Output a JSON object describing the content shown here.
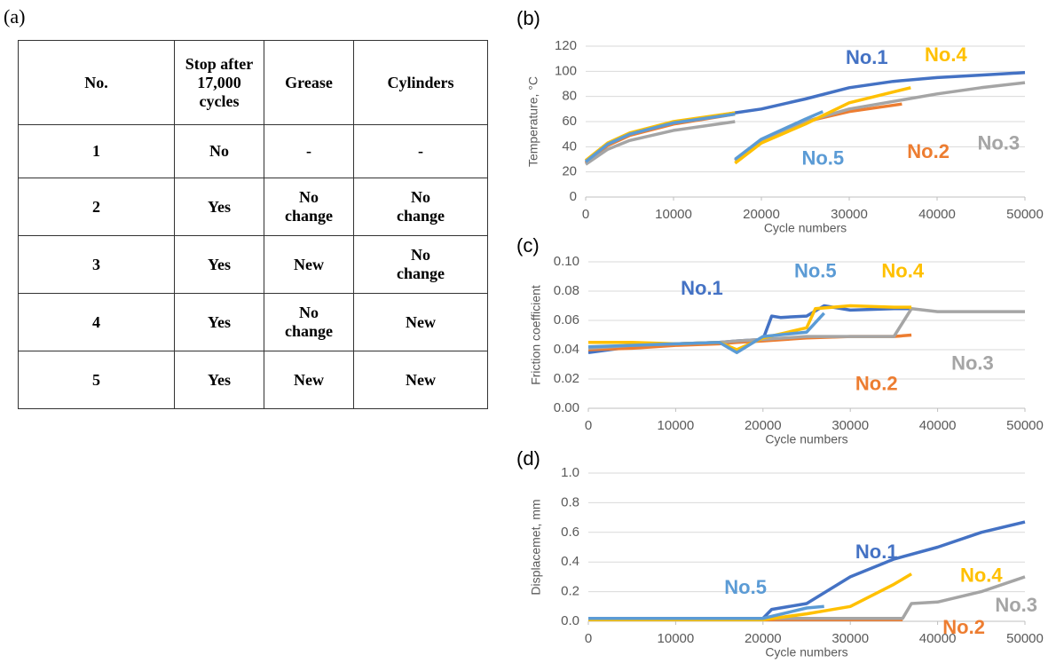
{
  "table": {
    "panel_label": "(a)",
    "header": [
      "No.",
      "Stop after 17,000 cycles",
      "Grease",
      "Cylinders"
    ],
    "rows": [
      [
        "1",
        "No",
        "-",
        "-"
      ],
      [
        "2",
        "Yes",
        "No change",
        "No change"
      ],
      [
        "3",
        "Yes",
        "New",
        "No change"
      ],
      [
        "4",
        "Yes",
        "No change",
        "New"
      ],
      [
        "5",
        "Yes",
        "New",
        "New"
      ]
    ]
  },
  "chart_data": [
    {
      "type": "line",
      "panel_label": "(b)",
      "xlabel": "Cycle numbers",
      "ylabel": "Temperature, °C",
      "xlim": [
        0,
        50000
      ],
      "xticks": [
        0,
        10000,
        20000,
        30000,
        40000,
        50000
      ],
      "ylim": [
        0,
        120
      ],
      "yticks": [
        0,
        20,
        40,
        60,
        80,
        100,
        120
      ],
      "grid": true,
      "series": [
        {
          "name": "No.1",
          "color": "#4472c4",
          "x": [
            0,
            2500,
            5000,
            10000,
            17000,
            20000,
            25000,
            30000,
            35000,
            40000,
            45000,
            50000
          ],
          "values": [
            28,
            42,
            50,
            59,
            67,
            70,
            78,
            87,
            92,
            95,
            97,
            99
          ]
        },
        {
          "name": "No.2",
          "color": "#ed7d31",
          "x": [
            0,
            2500,
            5000,
            10000,
            17000,
            17000,
            17000,
            20000,
            25000,
            30000,
            36000
          ],
          "values": [
            27,
            41,
            49,
            58,
            66,
            null,
            29,
            45,
            60,
            68,
            74
          ]
        },
        {
          "name": "No.3",
          "color": "#a5a5a5",
          "x": [
            0,
            2500,
            5000,
            10000,
            17000,
            17000,
            17000,
            20000,
            25000,
            30000,
            35000,
            40000,
            45000,
            50000
          ],
          "values": [
            26,
            38,
            45,
            53,
            60,
            null,
            29,
            45,
            60,
            70,
            76,
            82,
            87,
            91
          ]
        },
        {
          "name": "No.4",
          "color": "#ffc000",
          "x": [
            0,
            2500,
            5000,
            10000,
            17000,
            17000,
            17000,
            20000,
            25000,
            30000,
            37000
          ],
          "values": [
            29,
            43,
            51,
            60,
            67,
            null,
            27,
            43,
            58,
            75,
            87
          ]
        },
        {
          "name": "No.5",
          "color": "#5b9bd5",
          "x": [
            0,
            2500,
            5000,
            10000,
            17000,
            17000,
            17000,
            20000,
            25000,
            27000
          ],
          "values": [
            28,
            42,
            50,
            59,
            66,
            null,
            30,
            46,
            62,
            68
          ]
        }
      ]
    },
    {
      "type": "line",
      "panel_label": "(c)",
      "xlabel": "Cycle numbers",
      "ylabel": "Friction coefficient",
      "xlim": [
        0,
        50000
      ],
      "xticks": [
        0,
        10000,
        20000,
        30000,
        40000,
        50000
      ],
      "ylim": [
        0,
        0.1
      ],
      "yticks": [
        {
          "value": 0,
          "label": "0.00"
        },
        {
          "value": 0.02,
          "label": "0.02"
        },
        {
          "value": 0.04,
          "label": "0.04"
        },
        {
          "value": 0.06,
          "label": "0.06"
        },
        {
          "value": 0.08,
          "label": "0.08"
        },
        {
          "value": 0.1,
          "label": "0.10"
        }
      ],
      "grid": true,
      "series": [
        {
          "name": "No.1",
          "color": "#4472c4",
          "x": [
            0,
            5000,
            10000,
            15000,
            17000,
            20000,
            21000,
            22000,
            25000,
            27000,
            30000,
            35000,
            37000
          ],
          "values": [
            0.038,
            0.042,
            0.044,
            0.045,
            0.046,
            0.047,
            0.063,
            0.062,
            0.063,
            0.07,
            0.067,
            0.068,
            0.068
          ]
        },
        {
          "name": "No.2",
          "color": "#ed7d31",
          "x": [
            0,
            5000,
            10000,
            15000,
            17000,
            20000,
            25000,
            30000,
            35000,
            37000
          ],
          "values": [
            0.04,
            0.041,
            0.043,
            0.044,
            0.045,
            0.046,
            0.048,
            0.049,
            0.049,
            0.05
          ]
        },
        {
          "name": "No.3",
          "color": "#a5a5a5",
          "x": [
            0,
            5000,
            10000,
            15000,
            17000,
            20000,
            25000,
            30000,
            35000,
            37000,
            40000,
            45000,
            50000
          ],
          "values": [
            0.041,
            0.043,
            0.044,
            0.045,
            0.046,
            0.047,
            0.049,
            0.049,
            0.049,
            0.068,
            0.066,
            0.066,
            0.066
          ]
        },
        {
          "name": "No.4",
          "color": "#ffc000",
          "x": [
            0,
            5000,
            10000,
            15000,
            17000,
            20000,
            25000,
            26000,
            30000,
            35000,
            37000
          ],
          "values": [
            0.045,
            0.045,
            0.044,
            0.045,
            0.04,
            0.048,
            0.055,
            0.068,
            0.07,
            0.069,
            0.069
          ]
        },
        {
          "name": "No.5",
          "color": "#5b9bd5",
          "x": [
            0,
            5000,
            10000,
            15000,
            17000,
            20000,
            25000,
            27000
          ],
          "values": [
            0.042,
            0.043,
            0.044,
            0.045,
            0.038,
            0.049,
            0.052,
            0.065
          ]
        }
      ]
    },
    {
      "type": "line",
      "panel_label": "(d)",
      "xlabel": "Cycle numbers",
      "ylabel": "Displacemet, mm",
      "xlim": [
        0,
        50000
      ],
      "xticks": [
        0,
        10000,
        20000,
        30000,
        40000,
        50000
      ],
      "ylim": [
        0,
        1
      ],
      "yticks": [
        {
          "value": 0,
          "label": "0.0"
        },
        0.2,
        0.4,
        0.6,
        0.8,
        {
          "value": 1,
          "label": "1.0"
        }
      ],
      "grid": true,
      "series": [
        {
          "name": "No.1",
          "color": "#4472c4",
          "x": [
            0,
            10000,
            20000,
            21000,
            25000,
            30000,
            35000,
            40000,
            45000,
            50000
          ],
          "values": [
            0.02,
            0.02,
            0.02,
            0.08,
            0.12,
            0.3,
            0.42,
            0.5,
            0.6,
            0.67
          ]
        },
        {
          "name": "No.2",
          "color": "#ed7d31",
          "x": [
            0,
            10000,
            20000,
            30000,
            36000
          ],
          "values": [
            0.01,
            0.01,
            0.01,
            0.01,
            0.01
          ]
        },
        {
          "name": "No.3",
          "color": "#a5a5a5",
          "x": [
            0,
            10000,
            20000,
            30000,
            36000,
            37000,
            40000,
            45000,
            50000
          ],
          "values": [
            0.02,
            0.02,
            0.02,
            0.02,
            0.02,
            0.12,
            0.13,
            0.2,
            0.3
          ]
        },
        {
          "name": "No.4",
          "color": "#ffc000",
          "x": [
            0,
            10000,
            20000,
            25000,
            27000,
            30000,
            35000,
            37000
          ],
          "values": [
            0.01,
            0.01,
            0.01,
            0.05,
            0.07,
            0.1,
            0.25,
            0.32
          ]
        },
        {
          "name": "No.5",
          "color": "#5b9bd5",
          "x": [
            0,
            10000,
            20000,
            25000,
            27000
          ],
          "values": [
            0.02,
            0.02,
            0.02,
            0.09,
            0.1
          ]
        }
      ]
    }
  ]
}
